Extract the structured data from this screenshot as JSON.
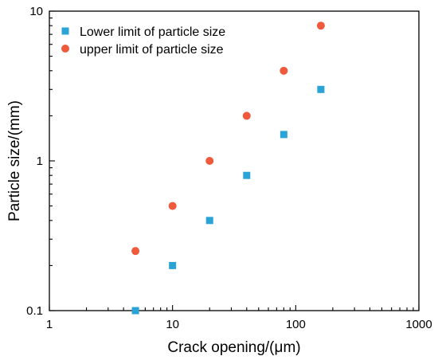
{
  "chart_data": {
    "type": "scatter",
    "title": "",
    "xlabel": "Crack opening/(μm)",
    "ylabel": "Particle size/(mm)",
    "xscale": "log",
    "yscale": "log",
    "xlim": [
      1,
      1000
    ],
    "ylim": [
      0.1,
      10
    ],
    "xticks": [
      1,
      10,
      100,
      1000
    ],
    "xtick_labels": [
      "1",
      "10",
      "100",
      "1000"
    ],
    "yticks": [
      0.1,
      1,
      10
    ],
    "ytick_labels": [
      "0.1",
      "1",
      "10"
    ],
    "grid": false,
    "legend_position": "top-left",
    "series": [
      {
        "name": "Lower limit of particle size",
        "marker": "square",
        "color": "#2aa3d6",
        "x": [
          5,
          10,
          20,
          40,
          80,
          160
        ],
        "y": [
          0.1,
          0.2,
          0.4,
          0.8,
          1.5,
          3
        ]
      },
      {
        "name": "upper limit of particle size",
        "marker": "circle",
        "color": "#ef5a3c",
        "x": [
          5,
          10,
          20,
          40,
          80,
          160
        ],
        "y": [
          0.25,
          0.5,
          1,
          2,
          4,
          8
        ]
      }
    ]
  }
}
